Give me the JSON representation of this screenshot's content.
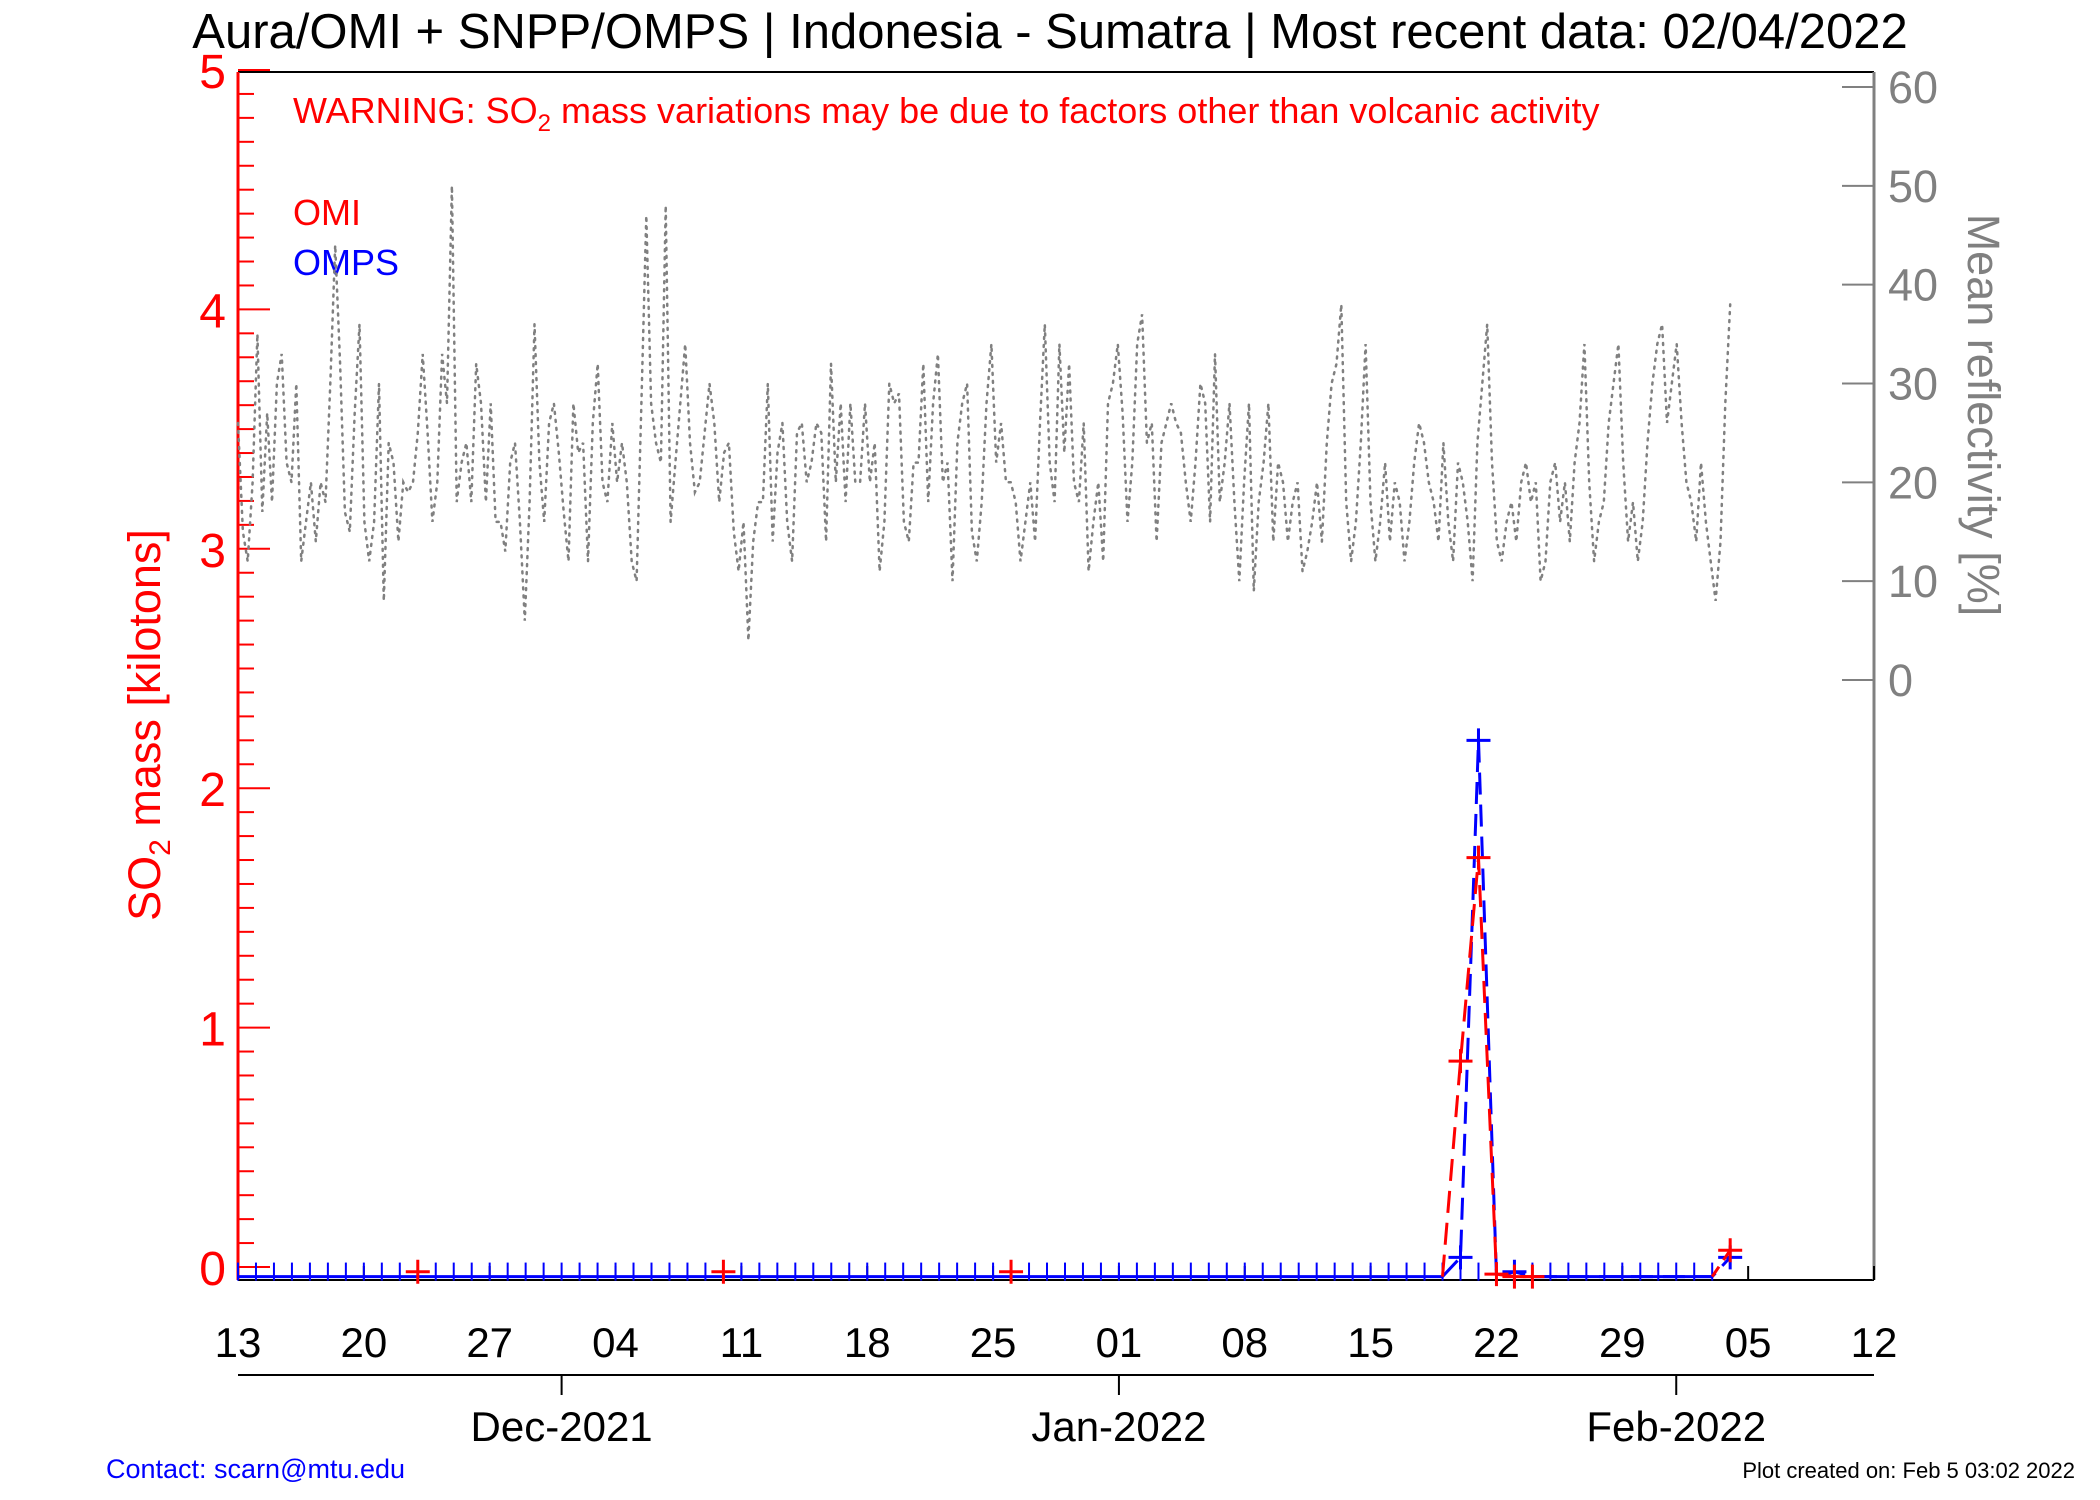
{
  "title": "Aura/OMI + SNPP/OMPS | Indonesia - Sumatra | Most recent data: 02/04/2022",
  "warning": {
    "prefix": "WARNING: SO",
    "subscript": "2",
    "suffix": " mass variations may be due to factors other than volcanic activity"
  },
  "left_axis": {
    "label_prefix": "SO",
    "label_subscript": "2",
    "label_suffix": " mass [kilotons]",
    "ticks": [
      "0",
      "1",
      "2",
      "3",
      "4",
      "5"
    ],
    "range": [
      -0.07,
      5.05
    ]
  },
  "right_axis": {
    "label": "Mean reflectivity [%]",
    "ticks": [
      "0",
      "10",
      "20",
      "30",
      "40",
      "50",
      "60"
    ]
  },
  "x_axis": {
    "day_ticks": [
      "13",
      "20",
      "27",
      "04",
      "11",
      "18",
      "25",
      "01",
      "08",
      "15",
      "22",
      "29",
      "05",
      "12"
    ],
    "month_labels": [
      "Dec-2021",
      "Jan-2022",
      "Feb-2022"
    ]
  },
  "legend": {
    "omi": "OMI",
    "omps": "OMPS"
  },
  "footer": {
    "contact": "Contact: scarn@mtu.edu",
    "created": "Plot created on: Feb  5 03:02 2022"
  },
  "colors": {
    "omi": "#ff0000",
    "omps": "#0000ff",
    "reflectivity": "#808080",
    "left_axis": "#ff0000",
    "right_axis": "#808080"
  },
  "chart_data": {
    "type": "line",
    "x_range": [
      "2021-11-13",
      "2022-02-12"
    ],
    "series": [
      {
        "name": "OMI",
        "style": "dashed-plus-markers",
        "axis": "left",
        "points": [
          [
            "2021-11-23",
            -0.02
          ],
          [
            "2021-12-10",
            -0.02
          ],
          [
            "2021-12-26",
            -0.02
          ],
          [
            "2022-01-20",
            0.86
          ],
          [
            "2022-01-21",
            1.71
          ],
          [
            "2022-01-22",
            -0.03
          ],
          [
            "2022-01-23",
            -0.04
          ],
          [
            "2022-01-24",
            -0.04
          ],
          [
            "2022-02-04",
            0.07
          ]
        ]
      },
      {
        "name": "OMPS",
        "style": "dashed-plus-markers",
        "axis": "left",
        "baseline_value": -0.04,
        "spike_points": [
          [
            "2022-01-19",
            -0.04
          ],
          [
            "2022-01-20",
            0.04
          ],
          [
            "2022-01-21",
            2.2
          ],
          [
            "2022-01-22",
            -0.04
          ],
          [
            "2022-01-23",
            -0.02
          ],
          [
            "2022-01-24",
            -0.04
          ],
          [
            "2022-02-03",
            -0.04
          ],
          [
            "2022-02-04",
            0.04
          ]
        ]
      },
      {
        "axis": "right",
        "style": "dotted",
        "start": "2021-11-13",
        "step_days": 1,
        "values": [
          26,
          15,
          12,
          20,
          35,
          17,
          27,
          18,
          30,
          33,
          22,
          20,
          30,
          12,
          16,
          20,
          14,
          20,
          18,
          30,
          44,
          32,
          17,
          15,
          27,
          36,
          16,
          12,
          16,
          30,
          8,
          24,
          22,
          14,
          20,
          19,
          20,
          25,
          33,
          25,
          16,
          20,
          33,
          28,
          50,
          18,
          22,
          24,
          18,
          32,
          28,
          18,
          28,
          16,
          16,
          13,
          22,
          24,
          16,
          6,
          18,
          36,
          22,
          16,
          26,
          28,
          23,
          17,
          12,
          28,
          23,
          24,
          12,
          26,
          32,
          20,
          18,
          26,
          20,
          24,
          20,
          12,
          10,
          28,
          47,
          28,
          24,
          22,
          48,
          16,
          22,
          28,
          34,
          24,
          19,
          20,
          25,
          30,
          26,
          18,
          23,
          24,
          15,
          11,
          16,
          4,
          14,
          18,
          18,
          30,
          14,
          23,
          26,
          16,
          12,
          25,
          26,
          20,
          22,
          26,
          25,
          14,
          32,
          20,
          28,
          18,
          28,
          20,
          20,
          28,
          20,
          24,
          11,
          16,
          30,
          28,
          29,
          16,
          14,
          22,
          22,
          32,
          18,
          28,
          33,
          20,
          22,
          10,
          24,
          28,
          30,
          15,
          12,
          18,
          28,
          34,
          22,
          26,
          20,
          20,
          18,
          12,
          16,
          20,
          14,
          26,
          36,
          22,
          18,
          34,
          23,
          32,
          20,
          18,
          26,
          11,
          16,
          20,
          12,
          28,
          30,
          34,
          27,
          16,
          22,
          34,
          37,
          24,
          26,
          14,
          24,
          26,
          28,
          26,
          25,
          20,
          16,
          22,
          30,
          28,
          16,
          33,
          18,
          22,
          28,
          18,
          10,
          20,
          28,
          9,
          18,
          22,
          28,
          14,
          22,
          20,
          14,
          18,
          20,
          11,
          13,
          16,
          20,
          14,
          24,
          30,
          32,
          38,
          18,
          12,
          16,
          24,
          34,
          18,
          12,
          16,
          22,
          14,
          20,
          18,
          12,
          16,
          22,
          26,
          24,
          20,
          18,
          14,
          24,
          16,
          12,
          22,
          20,
          16,
          10,
          24,
          30,
          36,
          22,
          14,
          12,
          16,
          18,
          14,
          20,
          22,
          18,
          20,
          10,
          12,
          20,
          22,
          16,
          20,
          14,
          22,
          26,
          34,
          20,
          12,
          16,
          18,
          26,
          30,
          34,
          22,
          14,
          18,
          12,
          16,
          24,
          30,
          34,
          36,
          26,
          30,
          34,
          26,
          20,
          18,
          14,
          22,
          16,
          12,
          8,
          14,
          28,
          38
        ]
      }
    ]
  }
}
